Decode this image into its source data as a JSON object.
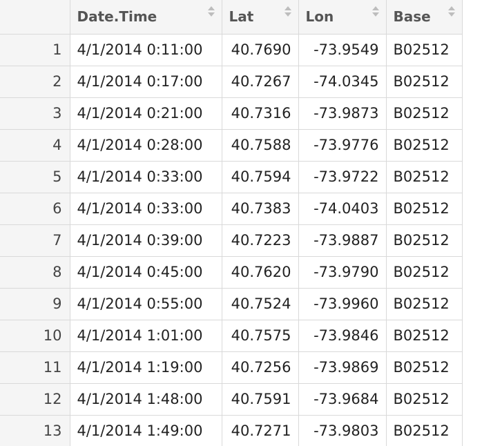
{
  "table": {
    "columns": [
      "Date.Time",
      "Lat",
      "Lon",
      "Base"
    ],
    "rows": [
      {
        "n": "1",
        "datetime": "4/1/2014 0:11:00",
        "lat": "40.7690",
        "lon": "-73.9549",
        "base": "B02512"
      },
      {
        "n": "2",
        "datetime": "4/1/2014 0:17:00",
        "lat": "40.7267",
        "lon": "-74.0345",
        "base": "B02512"
      },
      {
        "n": "3",
        "datetime": "4/1/2014 0:21:00",
        "lat": "40.7316",
        "lon": "-73.9873",
        "base": "B02512"
      },
      {
        "n": "4",
        "datetime": "4/1/2014 0:28:00",
        "lat": "40.7588",
        "lon": "-73.9776",
        "base": "B02512"
      },
      {
        "n": "5",
        "datetime": "4/1/2014 0:33:00",
        "lat": "40.7594",
        "lon": "-73.9722",
        "base": "B02512"
      },
      {
        "n": "6",
        "datetime": "4/1/2014 0:33:00",
        "lat": "40.7383",
        "lon": "-74.0403",
        "base": "B02512"
      },
      {
        "n": "7",
        "datetime": "4/1/2014 0:39:00",
        "lat": "40.7223",
        "lon": "-73.9887",
        "base": "B02512"
      },
      {
        "n": "8",
        "datetime": "4/1/2014 0:45:00",
        "lat": "40.7620",
        "lon": "-73.9790",
        "base": "B02512"
      },
      {
        "n": "9",
        "datetime": "4/1/2014 0:55:00",
        "lat": "40.7524",
        "lon": "-73.9960",
        "base": "B02512"
      },
      {
        "n": "10",
        "datetime": "4/1/2014 1:01:00",
        "lat": "40.7575",
        "lon": "-73.9846",
        "base": "B02512"
      },
      {
        "n": "11",
        "datetime": "4/1/2014 1:19:00",
        "lat": "40.7256",
        "lon": "-73.9869",
        "base": "B02512"
      },
      {
        "n": "12",
        "datetime": "4/1/2014 1:48:00",
        "lat": "40.7591",
        "lon": "-73.9684",
        "base": "B02512"
      },
      {
        "n": "13",
        "datetime": "4/1/2014 1:49:00",
        "lat": "40.7271",
        "lon": "-73.9803",
        "base": "B02512"
      }
    ]
  },
  "icons": {
    "sort": "sort-arrows-icon"
  },
  "colors": {
    "header_bg": "#f5f5f5",
    "grid_line": "#d9d9d9",
    "text": "#222222"
  }
}
